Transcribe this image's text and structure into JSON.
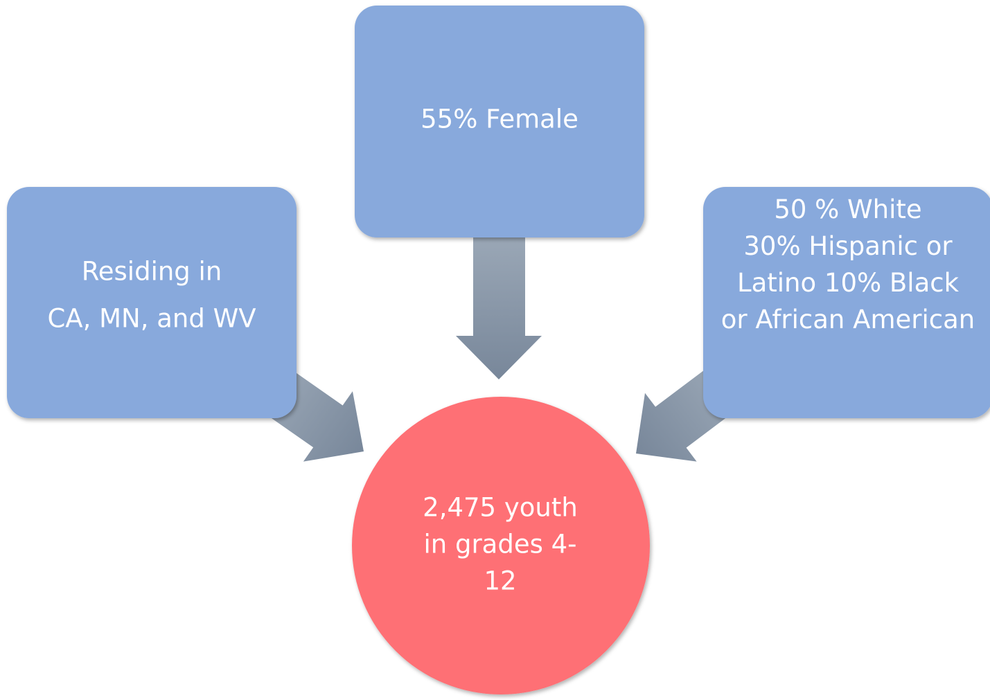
{
  "nodes": [
    {
      "label": [
        "55% Female"
      ]
    },
    {
      "label": [
        "Residing in",
        "CA, MN, and WV"
      ]
    },
    {
      "label": [
        "50 % White",
        "30% Hispanic or",
        "Latino 10% Black",
        "or African American"
      ]
    },
    {
      "label": [
        "2,475 youth",
        "in grades 4-",
        "12"
      ]
    }
  ]
}
